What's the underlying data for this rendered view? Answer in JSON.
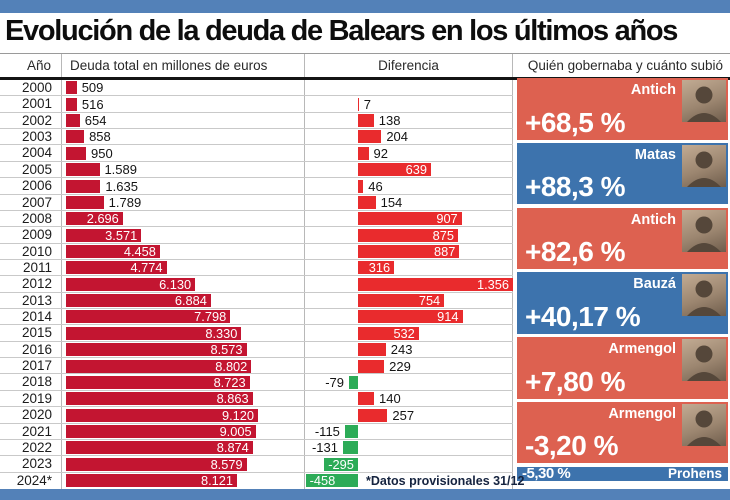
{
  "page": {
    "title": "Evolución de la deuda de Balears en los últimos años",
    "footnote": "*Datos provisionales 31/12"
  },
  "table_headers": {
    "year": "Año",
    "debt": "Deuda total en millones de euros",
    "diff": "Diferencia",
    "government": "Quién gobernaba y cuánto subió"
  },
  "colors": {
    "frame": "#5381b8",
    "debt_bar": "#c31531",
    "diff_positive": "#e92b2d",
    "diff_negative": "#2cab57",
    "card_red": "#dd6150",
    "card_blue": "#3d73ad"
  },
  "chart_data": {
    "type": "bar",
    "title": "Evolución de la deuda de Balears en los últimos años",
    "orientation": "horizontal",
    "categories": [
      "2000",
      "2001",
      "2002",
      "2003",
      "2004",
      "2005",
      "2006",
      "2007",
      "2008",
      "2009",
      "2010",
      "2011",
      "2012",
      "2013",
      "2014",
      "2015",
      "2016",
      "2017",
      "2018",
      "2019",
      "2020",
      "2021",
      "2022",
      "2023",
      "2024*"
    ],
    "series": [
      {
        "name": "Deuda total en millones de euros",
        "values": [
          509,
          516,
          654,
          858,
          950,
          1589,
          1635,
          1789,
          2696,
          3571,
          4458,
          4774,
          6130,
          6884,
          7798,
          8330,
          8573,
          8802,
          8723,
          8863,
          9120,
          9005,
          8874,
          8579,
          8121
        ]
      },
      {
        "name": "Diferencia",
        "values": [
          null,
          7,
          138,
          204,
          92,
          639,
          46,
          154,
          907,
          875,
          887,
          316,
          1356,
          754,
          914,
          532,
          243,
          229,
          -79,
          140,
          257,
          -115,
          -131,
          -295,
          -458
        ]
      }
    ],
    "debt_labels": [
      "509",
      "516",
      "654",
      "858",
      "950",
      "1.589",
      "1.635",
      "1.789",
      "2.696",
      "3.571",
      "4.458",
      "4.774",
      "6.130",
      "6.884",
      "7.798",
      "8.330",
      "8.573",
      "8.802",
      "8.723",
      "8.863",
      "9.120",
      "9.005",
      "8.874",
      "8.579",
      "8.121"
    ],
    "diff_labels": [
      "",
      "7",
      "138",
      "204",
      "92",
      "639",
      "46",
      "154",
      "907",
      "875",
      "887",
      "316",
      "1.356",
      "754",
      "914",
      "532",
      "243",
      "229",
      "-79",
      "140",
      "257",
      "-115",
      "-131",
      "-295",
      "-458"
    ],
    "axis": {
      "debt_max": 9120,
      "diff_min": -458,
      "diff_max": 1356
    },
    "legend_position": "none",
    "grid": "horizontal-row-lines",
    "governments": [
      {
        "name": "Antich",
        "change_pct": "+68,5 %",
        "party_color": "red",
        "years_span": 4,
        "has_photo": true,
        "compact": false
      },
      {
        "name": "Matas",
        "change_pct": "+88,3 %",
        "party_color": "blue",
        "years_span": 4,
        "has_photo": true,
        "compact": false
      },
      {
        "name": "Antich",
        "change_pct": "+82,6 %",
        "party_color": "red",
        "years_span": 4,
        "has_photo": true,
        "compact": false
      },
      {
        "name": "Bauzá",
        "change_pct": "+40,17 %",
        "party_color": "blue",
        "years_span": 4,
        "has_photo": true,
        "compact": false
      },
      {
        "name": "Armengol",
        "change_pct": "+7,80 %",
        "party_color": "red",
        "years_span": 4,
        "has_photo": true,
        "compact": false
      },
      {
        "name": "Armengol",
        "change_pct": "-3,20 %",
        "party_color": "red",
        "years_span": 4,
        "has_photo": true,
        "compact": false
      },
      {
        "name": "Prohens",
        "change_pct": "-5,30 %",
        "party_color": "blue",
        "years_span": 1,
        "has_photo": false,
        "compact": true
      }
    ]
  }
}
